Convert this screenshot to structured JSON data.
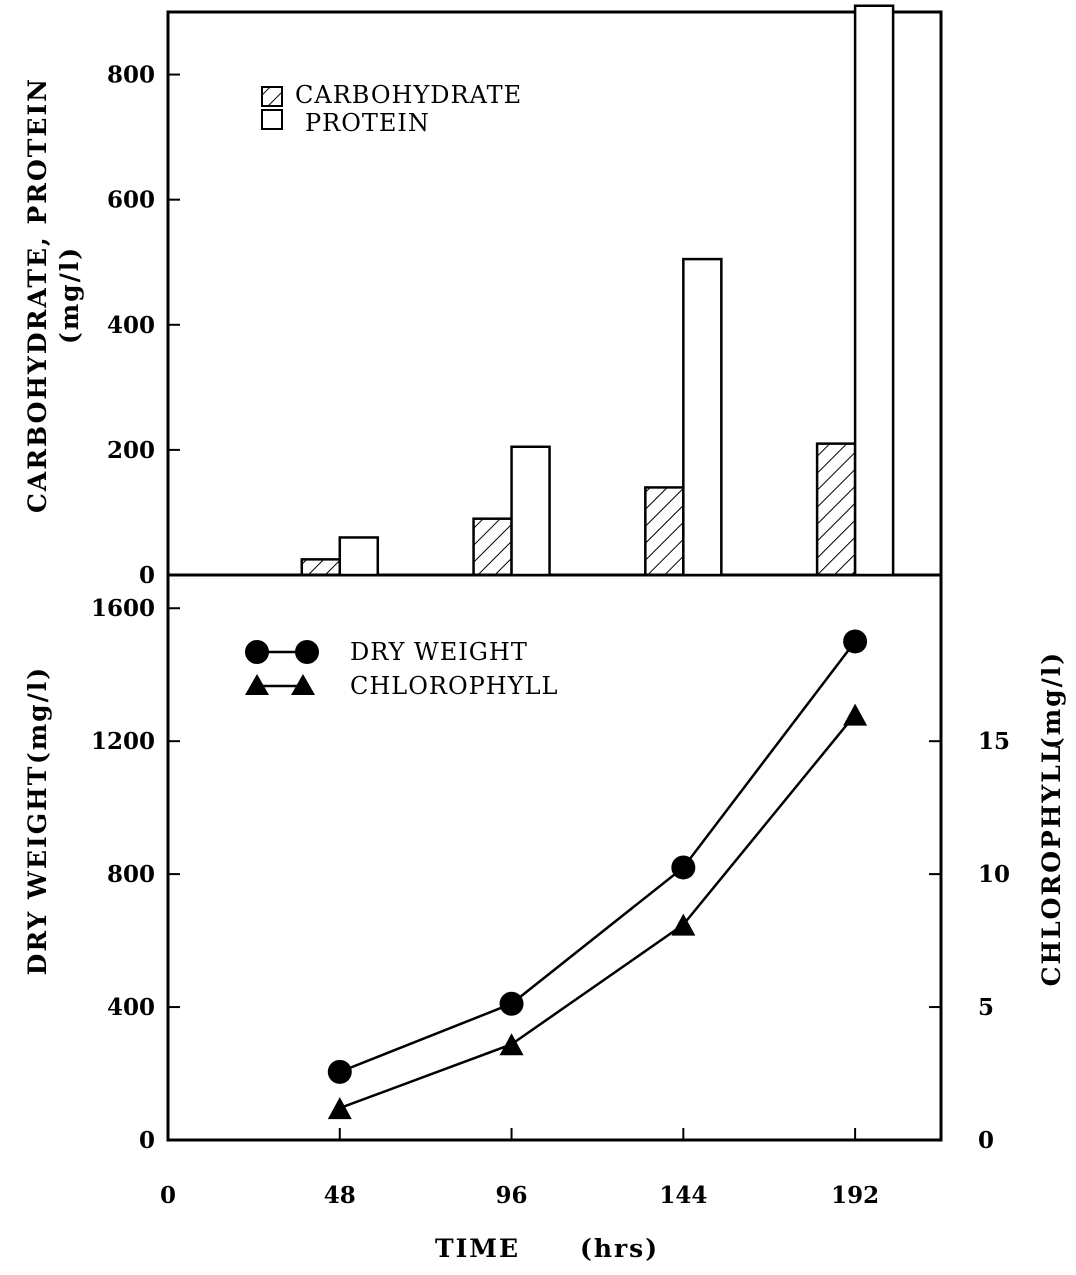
{
  "chart_data": [
    {
      "type": "bar",
      "ylabel": "CARBOHYDRATE, PROTEIN",
      "ylabel_unit": "(mg/l)",
      "categories": [
        48,
        96,
        144,
        192
      ],
      "series": [
        {
          "name": "CARBOHYDRATE",
          "pattern": "hatched",
          "values": [
            25,
            90,
            140,
            210
          ]
        },
        {
          "name": "PROTEIN",
          "pattern": "open",
          "values": [
            60,
            205,
            505,
            910
          ]
        }
      ],
      "ylim": [
        0,
        900
      ],
      "y_ticks": [
        0,
        200,
        400,
        600,
        800
      ],
      "legend_position": "top-left",
      "grid": false
    },
    {
      "type": "line",
      "xlabel": "TIME",
      "xlabel_unit": "(hrs)",
      "x": [
        48,
        96,
        144,
        192
      ],
      "x_ticks": [
        0,
        48,
        96,
        144,
        192
      ],
      "xlim": [
        0,
        216
      ],
      "ylabel_left": "DRY WEIGHT",
      "ylabel_left_unit": "(mg/l)",
      "ylabel_right": "CHLOROPHYLL",
      "ylabel_right_unit": "(mg/l)",
      "ylim_left": [
        0,
        1700
      ],
      "y_ticks_left": [
        0,
        400,
        800,
        1200,
        1600
      ],
      "ylim_right": [
        0,
        21.25
      ],
      "y_ticks_right": [
        0,
        5,
        10,
        15
      ],
      "series": [
        {
          "name": "DRY WEIGHT",
          "axis": "left",
          "marker": "circle",
          "values": [
            205,
            410,
            820,
            1500
          ]
        },
        {
          "name": "CHLOROPHYLL",
          "axis": "right",
          "marker": "triangle",
          "values": [
            1.2,
            3.6,
            8.1,
            16.0
          ]
        }
      ],
      "legend_position": "top-left",
      "grid": false
    }
  ]
}
